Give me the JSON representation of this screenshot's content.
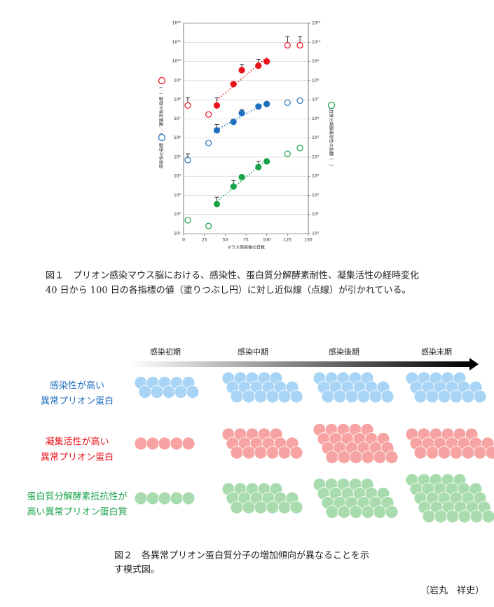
{
  "chart_data": {
    "type": "scatter",
    "x_label": "マウス感染後の日数",
    "y_label": "感染性の指標（　）／凝集活性の指標（　）",
    "y2_label": "蛋白質分解酵素耐性の指標（　）",
    "x": [
      5,
      30,
      40,
      60,
      70,
      90,
      100,
      125,
      140
    ],
    "xlim": [
      0,
      150
    ],
    "xticks": [
      0,
      25,
      50,
      75,
      100,
      125,
      150
    ],
    "ylim": [
      10,
      1000000000000
    ],
    "yticks": [
      {
        "value": 10,
        "label": "10¹"
      },
      {
        "value": 100,
        "label": "10²"
      },
      {
        "value": 1000,
        "label": "10³"
      },
      {
        "value": 10000,
        "label": "10⁴"
      },
      {
        "value": 100000,
        "label": "10⁵"
      },
      {
        "value": 1000000,
        "label": "10⁶"
      },
      {
        "value": 10000000,
        "label": "10⁷"
      },
      {
        "value": 100000000,
        "label": "10⁸"
      },
      {
        "value": 1000000000,
        "label": "10⁹"
      },
      {
        "value": 10000000000,
        "label": "10¹⁰"
      },
      {
        "value": 100000000000,
        "label": "10¹¹"
      },
      {
        "value": 1000000000000,
        "label": "10¹²"
      }
    ],
    "y2lim": [
      1,
      100000000000
    ],
    "y2ticks": [
      {
        "value": 1,
        "label": "10⁰"
      },
      {
        "value": 10,
        "label": "10¹"
      },
      {
        "value": 100,
        "label": "10²"
      },
      {
        "value": 1000,
        "label": "10³"
      },
      {
        "value": 10000,
        "label": "10⁴"
      },
      {
        "value": 100000,
        "label": "10⁵"
      },
      {
        "value": 1000000,
        "label": "10⁶"
      },
      {
        "value": 10000000,
        "label": "10⁷"
      },
      {
        "value": 100000000,
        "label": "10⁸"
      },
      {
        "value": 1000000000,
        "label": "10⁹"
      },
      {
        "value": 10000000000,
        "label": "10¹⁰"
      },
      {
        "value": 100000000000,
        "label": "10¹¹"
      }
    ],
    "log_scale": true,
    "grid": true,
    "series": [
      {
        "color": "#e8141b",
        "values": [
          50000000,
          17000000,
          50000000,
          650000000,
          3500000000,
          6000000000,
          10000000000,
          70000000000,
          70000000000
        ],
        "filled": [
          false,
          false,
          true,
          true,
          true,
          true,
          true,
          false,
          false
        ],
        "error_upper": [
          130000000,
          null,
          130000000,
          null,
          7000000000,
          13000000000,
          null,
          200000000000,
          200000000000
        ]
      },
      {
        "color": "#1f6fbf",
        "values": [
          70000,
          540000,
          2500000,
          7000000,
          20000000,
          44000000,
          60000000,
          70000000,
          90000000
        ],
        "filled": [
          false,
          false,
          true,
          true,
          true,
          true,
          true,
          false,
          false
        ],
        "error_upper": [
          150000,
          null,
          5000000,
          null,
          30000000,
          null,
          null,
          null,
          null
        ]
      },
      {
        "color": "#1aa34a",
        "axis": "y2",
        "values": [
          5,
          2.5,
          35,
          290,
          900,
          3000,
          6000,
          15000,
          30000
        ],
        "filled": [
          false,
          false,
          true,
          true,
          true,
          true,
          true,
          false,
          false
        ],
        "error_upper": [
          null,
          null,
          80,
          600,
          null,
          6000,
          null,
          null,
          null
        ]
      }
    ]
  },
  "figure1_caption": [
    "図１　プリオン感染マウス脳における、感染性、蛋白質分解酵素耐性、凝集活性の経時変化",
    "40 日から 100 日の各指標の値（塗りつぶし円）に対し近似線（点線）が引かれている。"
  ],
  "figure2": {
    "stages": [
      "感染初期",
      "感染中期",
      "感染後期",
      "感染末期"
    ],
    "rows": [
      {
        "label": [
          "感染性が高い",
          "異常プリオン蛋白"
        ],
        "color": "#1f6fbf"
      },
      {
        "label": [
          "凝集活性が高い",
          "異常プリオン蛋白"
        ],
        "color": "#e8141b"
      },
      {
        "label": [
          "蛋白質分解酵素抵抗性が",
          "高い異常プリオン蛋白質"
        ],
        "color": "#1aa34a"
      }
    ],
    "caption": [
      "図２　各異常プリオン蛋白質分子の増加傾向が異なることを示",
      "す模式図。"
    ]
  },
  "author": "（岩丸　祥史）"
}
